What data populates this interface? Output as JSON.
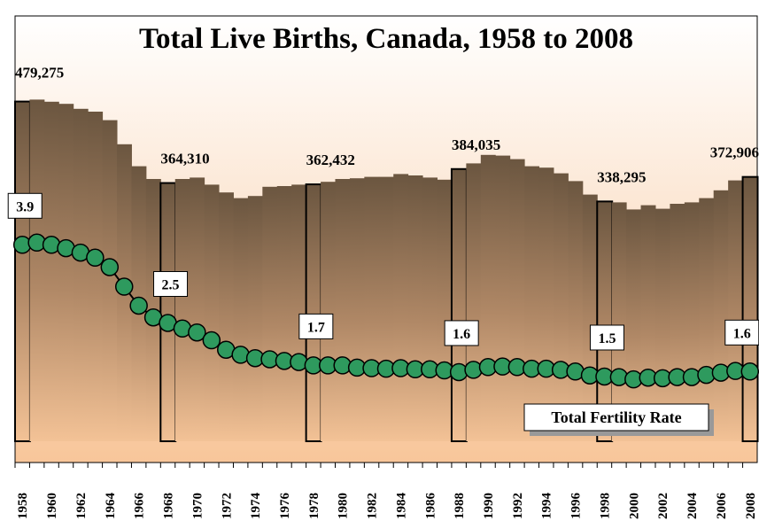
{
  "chart_data": {
    "type": "combo",
    "title": "Total Live Births, Canada, 1958 to 2008",
    "categories": [
      "1958",
      null,
      "1960",
      null,
      "1962",
      null,
      "1964",
      null,
      "1966",
      null,
      "1968",
      null,
      "1970",
      null,
      "1972",
      null,
      "1974",
      null,
      "1976",
      null,
      "1978",
      null,
      "1980",
      null,
      "1982",
      null,
      "1984",
      null,
      "1986",
      null,
      "1988",
      null,
      "1990",
      null,
      "1992",
      null,
      "1994",
      null,
      "1996",
      null,
      "1998",
      null,
      "2000",
      null,
      "2002",
      null,
      "2004",
      null,
      "2006",
      null,
      "2008"
    ],
    "ylim": [
      -30000,
      600000
    ],
    "y2lim": [
      0,
      8
    ],
    "series": [
      {
        "type": "bar",
        "color": "#6b5640",
        "values": [
          479275,
          482000,
          479000,
          476000,
          469000,
          465000,
          453000,
          419000,
          388000,
          370000,
          364310,
          370000,
          372000,
          362000,
          351000,
          343000,
          346000,
          359000,
          360000,
          362000,
          362432,
          366000,
          370000,
          371000,
          373000,
          373000,
          377000,
          375000,
          372000,
          369000,
          384035,
          392000,
          404000,
          403000,
          398000,
          388000,
          386000,
          378000,
          367000,
          348000,
          338295,
          337000,
          327000,
          333000,
          328000,
          335000,
          337000,
          343000,
          354000,
          368000,
          372906
        ],
        "value_labels": [
          "479,275",
          null,
          null,
          null,
          null,
          null,
          null,
          null,
          null,
          null,
          "364,310",
          null,
          null,
          null,
          null,
          null,
          null,
          null,
          null,
          null,
          "362,432",
          null,
          null,
          null,
          null,
          null,
          null,
          null,
          null,
          null,
          "384,035",
          null,
          null,
          null,
          null,
          null,
          null,
          null,
          null,
          null,
          "338,295",
          null,
          null,
          null,
          null,
          null,
          null,
          null,
          null,
          null,
          "372,906"
        ]
      },
      {
        "type": "line",
        "name": "Total Fertility Rate",
        "axis": "y2",
        "color": "#2e9a5e",
        "values": [
          3.9,
          3.94,
          3.9,
          3.84,
          3.76,
          3.67,
          3.5,
          3.15,
          2.81,
          2.6,
          2.5,
          2.4,
          2.33,
          2.19,
          2.02,
          1.93,
          1.87,
          1.85,
          1.82,
          1.8,
          1.74,
          1.74,
          1.74,
          1.7,
          1.69,
          1.68,
          1.69,
          1.67,
          1.67,
          1.65,
          1.62,
          1.66,
          1.71,
          1.72,
          1.71,
          1.68,
          1.68,
          1.66,
          1.63,
          1.56,
          1.54,
          1.53,
          1.49,
          1.52,
          1.51,
          1.53,
          1.53,
          1.57,
          1.61,
          1.64,
          1.63
        ],
        "value_labels": [
          "3.9",
          null,
          null,
          null,
          null,
          null,
          null,
          null,
          null,
          null,
          "2.5",
          null,
          null,
          null,
          null,
          null,
          null,
          null,
          null,
          null,
          "1.7",
          null,
          null,
          null,
          null,
          null,
          null,
          null,
          null,
          null,
          "1.6",
          null,
          null,
          null,
          null,
          null,
          null,
          null,
          null,
          null,
          "1.5",
          null,
          null,
          null,
          null,
          null,
          null,
          null,
          null,
          null,
          "1.6"
        ]
      }
    ]
  }
}
